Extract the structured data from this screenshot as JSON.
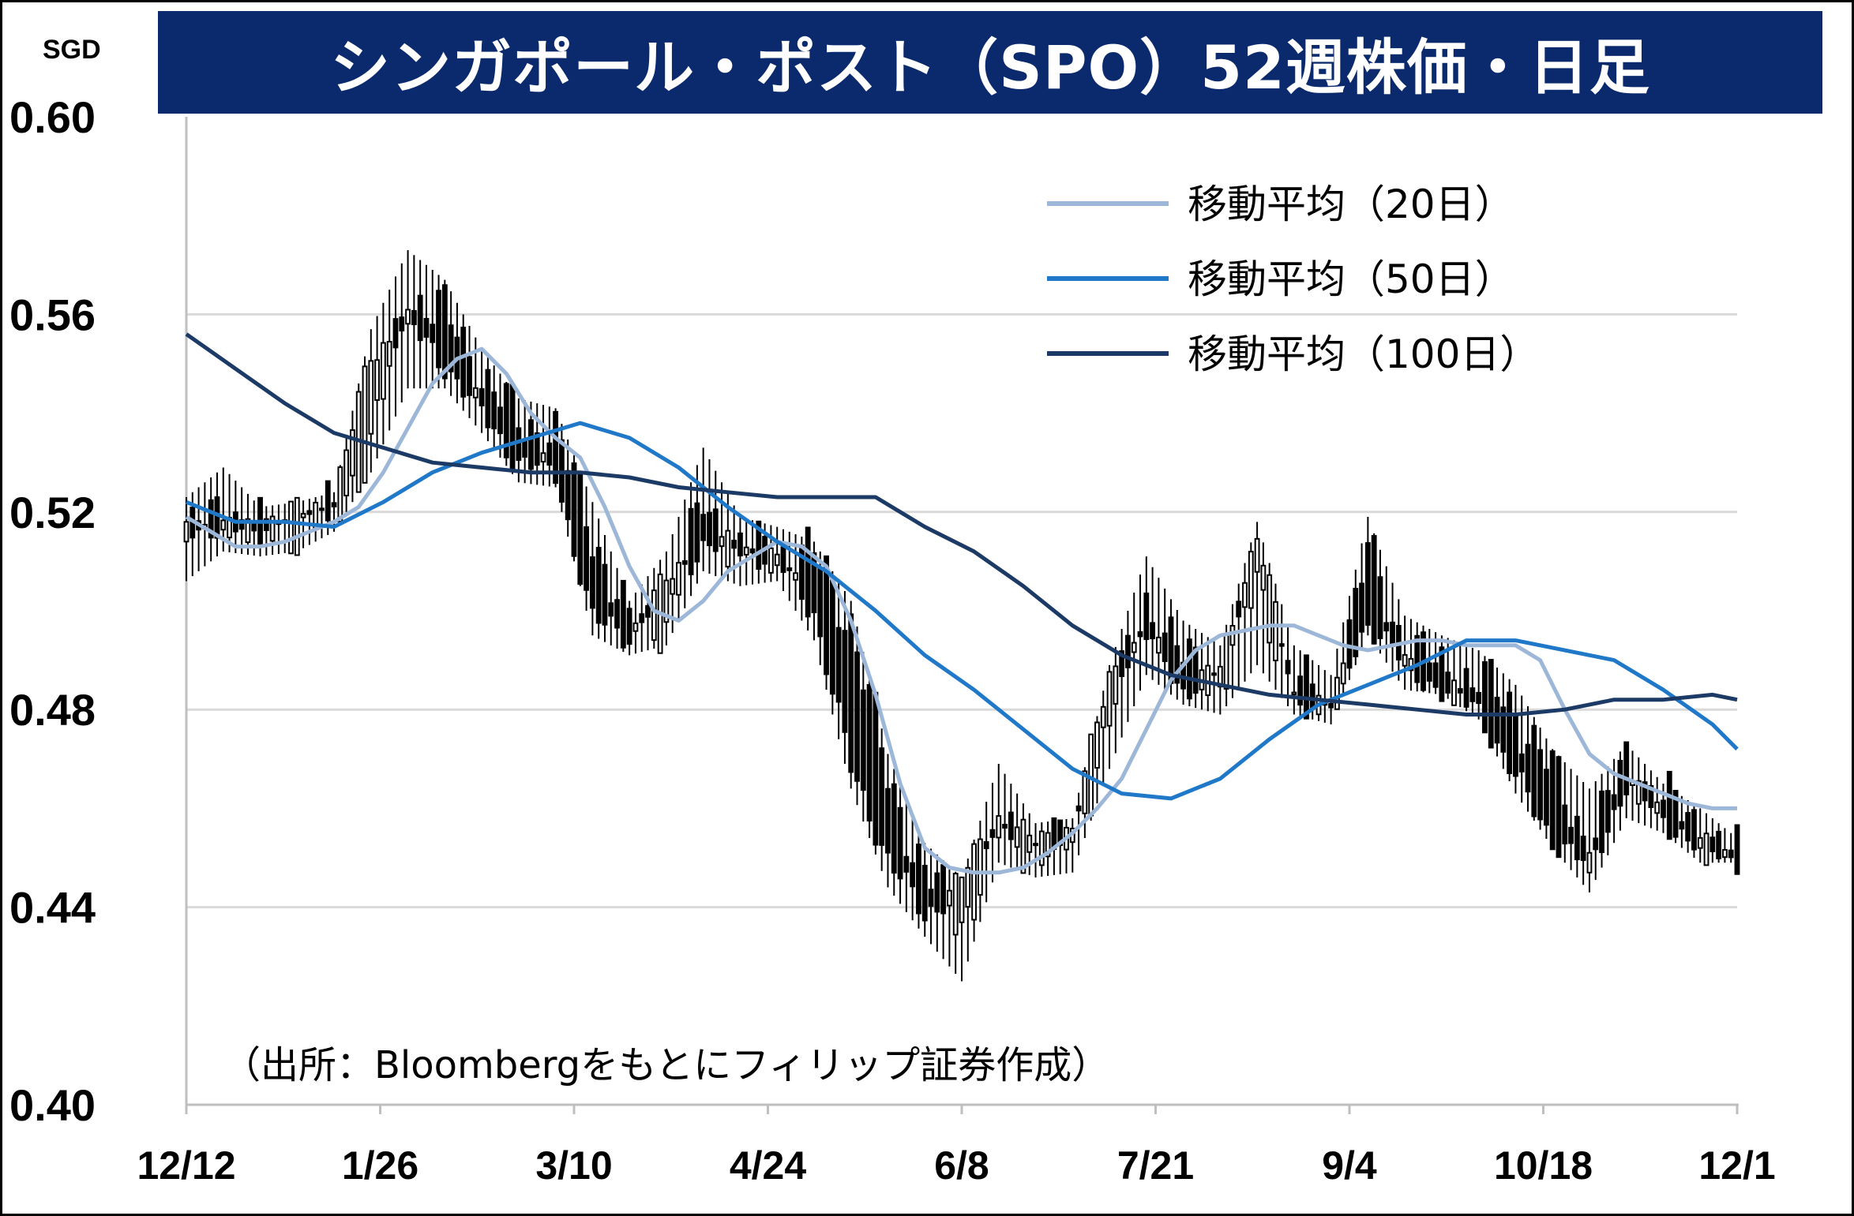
{
  "chart_data": {
    "type": "candlestick",
    "title": "シンガポール・ポスト（SPO）52週株価・日足",
    "unit_label": "SGD",
    "source_note": "（出所：Bloombergをもとにフィリップ証券作成）",
    "ylim": [
      0.4,
      0.6
    ],
    "y_ticks": [
      "0.60",
      "0.56",
      "0.52",
      "0.48",
      "0.44",
      "0.40"
    ],
    "y_tick_values": [
      0.6,
      0.56,
      0.52,
      0.48,
      0.44,
      0.4
    ],
    "x_ticks": [
      "12/12",
      "1/26",
      "3/10",
      "4/24",
      "6/8",
      "7/21",
      "9/4",
      "10/18",
      "12/1"
    ],
    "gridlines": true,
    "legend_position": "top-right",
    "colors": {
      "title_bg": "#0b2a6e",
      "ma20": "#9db7d9",
      "ma50": "#1f78c8",
      "ma100": "#1c3a66",
      "up_candle": "#ffffff",
      "down_candle": "#000000",
      "grid": "#d9d9d9"
    },
    "series": [
      {
        "name": "移動平均（20日）",
        "x": [
          0,
          4,
          8,
          12,
          16,
          20,
          24,
          28,
          32,
          36,
          40,
          44,
          48,
          52,
          56,
          60,
          64,
          68,
          72,
          76,
          80,
          84,
          88,
          92,
          96,
          100,
          104,
          108,
          112,
          116,
          120,
          124,
          128,
          132,
          136,
          140,
          144,
          148,
          152,
          156,
          160,
          164,
          168,
          172,
          176,
          180,
          184,
          188,
          192,
          196,
          200,
          204,
          208,
          212,
          216,
          220,
          224,
          228,
          232,
          236,
          240,
          244,
          248,
          252
        ],
        "values": [
          0.519,
          0.516,
          0.513,
          0.513,
          0.514,
          0.516,
          0.518,
          0.521,
          0.528,
          0.537,
          0.546,
          0.551,
          0.553,
          0.548,
          0.54,
          0.535,
          0.531,
          0.521,
          0.509,
          0.5,
          0.498,
          0.502,
          0.508,
          0.511,
          0.514,
          0.513,
          0.509,
          0.498,
          0.483,
          0.465,
          0.452,
          0.448,
          0.447,
          0.447,
          0.448,
          0.451,
          0.455,
          0.46,
          0.466,
          0.476,
          0.486,
          0.492,
          0.495,
          0.496,
          0.497,
          0.497,
          0.495,
          0.493,
          0.492,
          0.493,
          0.494,
          0.494,
          0.493,
          0.493,
          0.493,
          0.49,
          0.48,
          0.471,
          0.467,
          0.465,
          0.463,
          0.461,
          0.46,
          0.46
        ]
      },
      {
        "name": "移動平均（50日）",
        "x": [
          0,
          8,
          16,
          24,
          32,
          40,
          48,
          56,
          64,
          72,
          80,
          88,
          96,
          104,
          112,
          120,
          128,
          136,
          144,
          152,
          160,
          168,
          176,
          184,
          192,
          200,
          208,
          216,
          224,
          232,
          240,
          248,
          252
        ],
        "values": [
          0.522,
          0.518,
          0.518,
          0.517,
          0.522,
          0.528,
          0.532,
          0.535,
          0.538,
          0.535,
          0.529,
          0.521,
          0.514,
          0.508,
          0.5,
          0.491,
          0.484,
          0.476,
          0.468,
          0.463,
          0.462,
          0.466,
          0.474,
          0.481,
          0.485,
          0.489,
          0.494,
          0.494,
          0.492,
          0.49,
          0.484,
          0.477,
          0.472
        ]
      },
      {
        "name": "移動平均（100日）",
        "x": [
          0,
          8,
          16,
          24,
          32,
          40,
          48,
          56,
          64,
          72,
          80,
          88,
          96,
          104,
          112,
          120,
          128,
          136,
          144,
          152,
          160,
          168,
          176,
          184,
          192,
          200,
          208,
          216,
          224,
          232,
          240,
          248,
          252
        ],
        "values": [
          0.556,
          0.549,
          0.542,
          0.536,
          0.533,
          0.53,
          0.529,
          0.528,
          0.528,
          0.527,
          0.525,
          0.524,
          0.523,
          0.523,
          0.523,
          0.517,
          0.512,
          0.505,
          0.497,
          0.491,
          0.487,
          0.485,
          0.483,
          0.482,
          0.481,
          0.48,
          0.479,
          0.479,
          0.48,
          0.482,
          0.482,
          0.483,
          0.482
        ]
      }
    ],
    "candles": {
      "comment_free": true,
      "days": [
        0,
        6,
        12,
        18,
        24,
        30,
        36,
        42,
        48,
        54,
        60,
        66,
        72,
        78,
        84,
        90,
        96,
        102,
        108,
        114,
        120,
        126,
        132,
        138,
        144,
        150,
        156,
        162,
        168,
        174,
        180,
        186,
        192,
        198,
        204,
        210,
        216,
        222,
        228,
        234,
        240,
        246,
        252
      ],
      "open": [
        0.514,
        0.521,
        0.516,
        0.517,
        0.52,
        0.533,
        0.564,
        0.56,
        0.548,
        0.538,
        0.536,
        0.516,
        0.497,
        0.498,
        0.522,
        0.512,
        0.512,
        0.511,
        0.498,
        0.466,
        0.447,
        0.437,
        0.455,
        0.452,
        0.453,
        0.478,
        0.502,
        0.49,
        0.486,
        0.505,
        0.486,
        0.48,
        0.512,
        0.493,
        0.488,
        0.486,
        0.48,
        0.467,
        0.453,
        0.469,
        0.462,
        0.456,
        0.45
      ],
      "high": [
        0.523,
        0.529,
        0.521,
        0.522,
        0.524,
        0.557,
        0.573,
        0.567,
        0.553,
        0.543,
        0.541,
        0.522,
        0.502,
        0.512,
        0.533,
        0.519,
        0.517,
        0.514,
        0.502,
        0.471,
        0.453,
        0.446,
        0.469,
        0.457,
        0.458,
        0.489,
        0.511,
        0.498,
        0.493,
        0.518,
        0.493,
        0.487,
        0.519,
        0.499,
        0.495,
        0.492,
        0.485,
        0.472,
        0.464,
        0.473,
        0.465,
        0.46,
        0.454
      ],
      "low": [
        0.506,
        0.512,
        0.511,
        0.512,
        0.516,
        0.528,
        0.545,
        0.545,
        0.536,
        0.526,
        0.525,
        0.495,
        0.491,
        0.493,
        0.508,
        0.505,
        0.506,
        0.494,
        0.464,
        0.444,
        0.434,
        0.425,
        0.449,
        0.446,
        0.447,
        0.468,
        0.487,
        0.481,
        0.479,
        0.489,
        0.479,
        0.477,
        0.495,
        0.484,
        0.483,
        0.478,
        0.463,
        0.452,
        0.443,
        0.458,
        0.455,
        0.449,
        0.449
      ],
      "close": [
        0.518,
        0.516,
        0.517,
        0.52,
        0.522,
        0.552,
        0.558,
        0.55,
        0.54,
        0.53,
        0.528,
        0.498,
        0.495,
        0.506,
        0.513,
        0.513,
        0.51,
        0.5,
        0.468,
        0.45,
        0.438,
        0.446,
        0.458,
        0.453,
        0.456,
        0.487,
        0.495,
        0.484,
        0.488,
        0.516,
        0.482,
        0.481,
        0.498,
        0.489,
        0.484,
        0.48,
        0.466,
        0.454,
        0.448,
        0.465,
        0.458,
        0.452,
        0.45
      ]
    }
  }
}
